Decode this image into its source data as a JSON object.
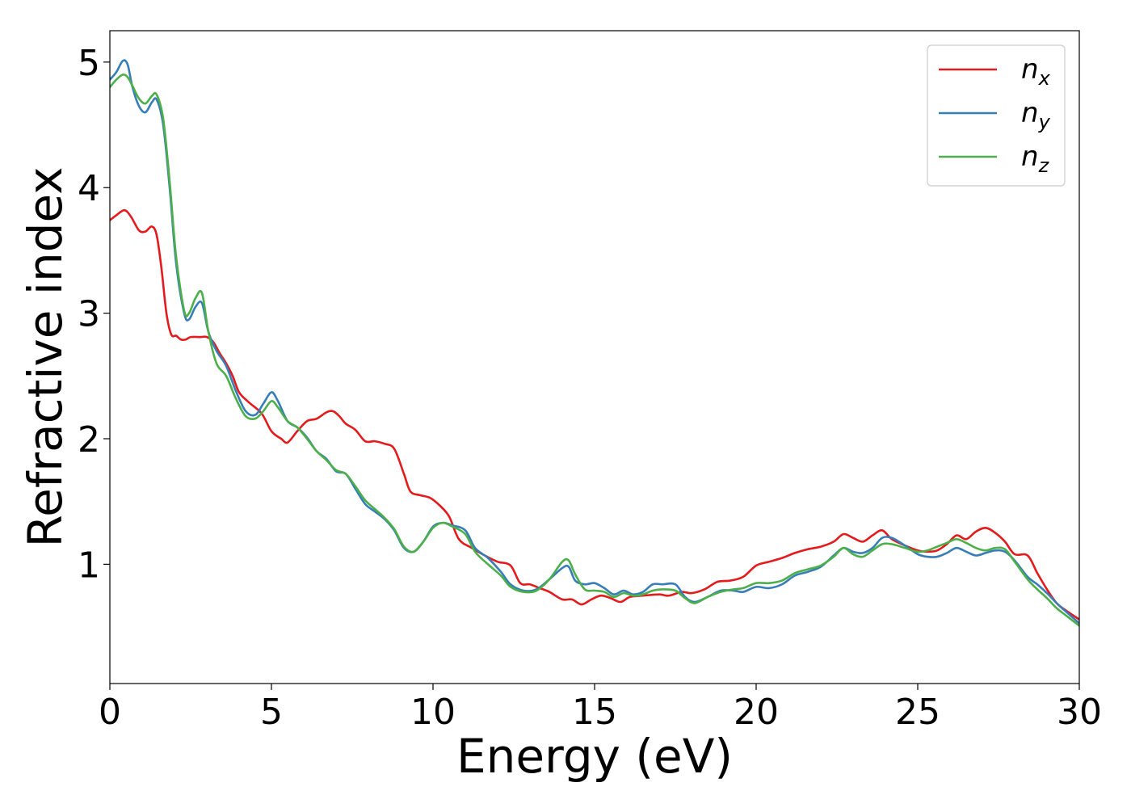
{
  "chart_data": {
    "type": "line",
    "title": "",
    "xlabel": "Energy (eV)",
    "ylabel": "Refractive index",
    "xlim": [
      0,
      30
    ],
    "ylim": [
      0.05,
      5.25
    ],
    "xticks": [
      0,
      5,
      10,
      15,
      20,
      25,
      30
    ],
    "yticks": [
      1,
      2,
      3,
      4,
      5
    ],
    "grid": false,
    "legend_position": "top-right",
    "series": [
      {
        "name": "n",
        "subscript": "x",
        "color": "#e41a1c",
        "points": [
          [
            0,
            3.74
          ],
          [
            0.2,
            3.78
          ],
          [
            0.45,
            3.82
          ],
          [
            0.65,
            3.77
          ],
          [
            0.9,
            3.66
          ],
          [
            1.1,
            3.65
          ],
          [
            1.3,
            3.69
          ],
          [
            1.45,
            3.62
          ],
          [
            1.6,
            3.35
          ],
          [
            1.75,
            3.0
          ],
          [
            1.9,
            2.83
          ],
          [
            2.05,
            2.82
          ],
          [
            2.2,
            2.79
          ],
          [
            2.35,
            2.79
          ],
          [
            2.5,
            2.81
          ],
          [
            2.8,
            2.81
          ],
          [
            3.0,
            2.81
          ],
          [
            3.2,
            2.77
          ],
          [
            3.4,
            2.68
          ],
          [
            3.6,
            2.6
          ],
          [
            3.8,
            2.5
          ],
          [
            4.0,
            2.37
          ],
          [
            4.3,
            2.29
          ],
          [
            4.7,
            2.2
          ],
          [
            5.0,
            2.06
          ],
          [
            5.3,
            2.0
          ],
          [
            5.5,
            1.97
          ],
          [
            5.8,
            2.06
          ],
          [
            6.1,
            2.14
          ],
          [
            6.4,
            2.16
          ],
          [
            6.7,
            2.21
          ],
          [
            6.9,
            2.22
          ],
          [
            7.1,
            2.18
          ],
          [
            7.3,
            2.12
          ],
          [
            7.6,
            2.07
          ],
          [
            7.9,
            1.98
          ],
          [
            8.2,
            1.98
          ],
          [
            8.5,
            1.96
          ],
          [
            8.8,
            1.92
          ],
          [
            9.1,
            1.72
          ],
          [
            9.3,
            1.58
          ],
          [
            9.6,
            1.55
          ],
          [
            9.9,
            1.53
          ],
          [
            10.2,
            1.47
          ],
          [
            10.5,
            1.38
          ],
          [
            10.8,
            1.2
          ],
          [
            11.2,
            1.13
          ],
          [
            11.6,
            1.07
          ],
          [
            12.0,
            1.02
          ],
          [
            12.4,
            0.99
          ],
          [
            12.7,
            0.85
          ],
          [
            13.0,
            0.84
          ],
          [
            13.3,
            0.81
          ],
          [
            13.6,
            0.78
          ],
          [
            14.0,
            0.72
          ],
          [
            14.3,
            0.72
          ],
          [
            14.6,
            0.68
          ],
          [
            14.9,
            0.72
          ],
          [
            15.2,
            0.75
          ],
          [
            15.5,
            0.73
          ],
          [
            15.8,
            0.7
          ],
          [
            16.1,
            0.74
          ],
          [
            16.5,
            0.75
          ],
          [
            17.0,
            0.76
          ],
          [
            17.3,
            0.75
          ],
          [
            17.7,
            0.78
          ],
          [
            18.0,
            0.77
          ],
          [
            18.4,
            0.8
          ],
          [
            18.8,
            0.86
          ],
          [
            19.2,
            0.87
          ],
          [
            19.6,
            0.9
          ],
          [
            20.0,
            0.99
          ],
          [
            20.4,
            1.02
          ],
          [
            20.8,
            1.05
          ],
          [
            21.2,
            1.09
          ],
          [
            21.6,
            1.12
          ],
          [
            22.0,
            1.14
          ],
          [
            22.4,
            1.18
          ],
          [
            22.7,
            1.24
          ],
          [
            23.0,
            1.21
          ],
          [
            23.3,
            1.18
          ],
          [
            23.6,
            1.23
          ],
          [
            23.9,
            1.27
          ],
          [
            24.2,
            1.2
          ],
          [
            24.6,
            1.15
          ],
          [
            25.0,
            1.11
          ],
          [
            25.3,
            1.1
          ],
          [
            25.6,
            1.11
          ],
          [
            25.9,
            1.16
          ],
          [
            26.2,
            1.23
          ],
          [
            26.5,
            1.2
          ],
          [
            26.8,
            1.26
          ],
          [
            27.1,
            1.29
          ],
          [
            27.4,
            1.25
          ],
          [
            27.7,
            1.18
          ],
          [
            28.0,
            1.08
          ],
          [
            28.4,
            1.07
          ],
          [
            28.7,
            0.93
          ],
          [
            29.0,
            0.8
          ],
          [
            29.3,
            0.69
          ],
          [
            29.6,
            0.63
          ],
          [
            30.0,
            0.56
          ]
        ]
      },
      {
        "name": "n",
        "subscript": "y",
        "color": "#377eb8",
        "points": [
          [
            0,
            4.86
          ],
          [
            0.2,
            4.92
          ],
          [
            0.4,
            5.01
          ],
          [
            0.55,
            4.98
          ],
          [
            0.7,
            4.8
          ],
          [
            0.9,
            4.65
          ],
          [
            1.1,
            4.6
          ],
          [
            1.3,
            4.68
          ],
          [
            1.45,
            4.7
          ],
          [
            1.65,
            4.5
          ],
          [
            1.85,
            4.0
          ],
          [
            2.05,
            3.4
          ],
          [
            2.3,
            3.0
          ],
          [
            2.45,
            2.95
          ],
          [
            2.65,
            3.05
          ],
          [
            2.85,
            3.08
          ],
          [
            3.05,
            2.85
          ],
          [
            3.3,
            2.7
          ],
          [
            3.6,
            2.58
          ],
          [
            3.9,
            2.38
          ],
          [
            4.2,
            2.22
          ],
          [
            4.5,
            2.19
          ],
          [
            4.75,
            2.28
          ],
          [
            5.0,
            2.37
          ],
          [
            5.2,
            2.3
          ],
          [
            5.5,
            2.14
          ],
          [
            5.8,
            2.09
          ],
          [
            6.1,
            2.01
          ],
          [
            6.4,
            1.9
          ],
          [
            6.7,
            1.84
          ],
          [
            7.0,
            1.74
          ],
          [
            7.3,
            1.72
          ],
          [
            7.6,
            1.6
          ],
          [
            7.9,
            1.48
          ],
          [
            8.2,
            1.42
          ],
          [
            8.5,
            1.36
          ],
          [
            8.8,
            1.27
          ],
          [
            9.1,
            1.13
          ],
          [
            9.4,
            1.1
          ],
          [
            9.7,
            1.18
          ],
          [
            10.0,
            1.3
          ],
          [
            10.3,
            1.33
          ],
          [
            10.6,
            1.31
          ],
          [
            11.0,
            1.27
          ],
          [
            11.3,
            1.13
          ],
          [
            11.7,
            1.05
          ],
          [
            12.1,
            0.94
          ],
          [
            12.4,
            0.84
          ],
          [
            12.8,
            0.79
          ],
          [
            13.2,
            0.8
          ],
          [
            13.6,
            0.88
          ],
          [
            14.0,
            0.97
          ],
          [
            14.2,
            0.98
          ],
          [
            14.4,
            0.87
          ],
          [
            14.7,
            0.84
          ],
          [
            15.0,
            0.85
          ],
          [
            15.3,
            0.81
          ],
          [
            15.6,
            0.76
          ],
          [
            15.9,
            0.79
          ],
          [
            16.2,
            0.76
          ],
          [
            16.5,
            0.78
          ],
          [
            16.8,
            0.84
          ],
          [
            17.1,
            0.84
          ],
          [
            17.5,
            0.84
          ],
          [
            17.8,
            0.74
          ],
          [
            18.1,
            0.7
          ],
          [
            18.5,
            0.74
          ],
          [
            18.9,
            0.79
          ],
          [
            19.3,
            0.79
          ],
          [
            19.6,
            0.78
          ],
          [
            20.0,
            0.82
          ],
          [
            20.4,
            0.81
          ],
          [
            20.8,
            0.84
          ],
          [
            21.2,
            0.91
          ],
          [
            21.6,
            0.94
          ],
          [
            22.0,
            0.98
          ],
          [
            22.4,
            1.07
          ],
          [
            22.7,
            1.13
          ],
          [
            23.0,
            1.1
          ],
          [
            23.3,
            1.09
          ],
          [
            23.6,
            1.13
          ],
          [
            23.9,
            1.21
          ],
          [
            24.2,
            1.21
          ],
          [
            24.6,
            1.15
          ],
          [
            25.0,
            1.08
          ],
          [
            25.3,
            1.06
          ],
          [
            25.6,
            1.06
          ],
          [
            25.9,
            1.09
          ],
          [
            26.2,
            1.13
          ],
          [
            26.5,
            1.1
          ],
          [
            26.8,
            1.07
          ],
          [
            27.1,
            1.09
          ],
          [
            27.4,
            1.11
          ],
          [
            27.7,
            1.1
          ],
          [
            28.0,
            1.03
          ],
          [
            28.4,
            0.9
          ],
          [
            28.7,
            0.84
          ],
          [
            29.0,
            0.77
          ],
          [
            29.3,
            0.69
          ],
          [
            29.6,
            0.62
          ],
          [
            30.0,
            0.53
          ]
        ]
      },
      {
        "name": "n",
        "subscript": "z",
        "color": "#4daf4a",
        "points": [
          [
            0,
            4.8
          ],
          [
            0.2,
            4.86
          ],
          [
            0.4,
            4.9
          ],
          [
            0.55,
            4.88
          ],
          [
            0.7,
            4.81
          ],
          [
            0.9,
            4.71
          ],
          [
            1.1,
            4.67
          ],
          [
            1.3,
            4.73
          ],
          [
            1.45,
            4.74
          ],
          [
            1.65,
            4.55
          ],
          [
            1.85,
            4.05
          ],
          [
            2.05,
            3.45
          ],
          [
            2.3,
            3.02
          ],
          [
            2.45,
            3.0
          ],
          [
            2.65,
            3.12
          ],
          [
            2.85,
            3.16
          ],
          [
            3.05,
            2.85
          ],
          [
            3.3,
            2.6
          ],
          [
            3.6,
            2.5
          ],
          [
            3.9,
            2.32
          ],
          [
            4.2,
            2.18
          ],
          [
            4.5,
            2.16
          ],
          [
            4.75,
            2.22
          ],
          [
            5.0,
            2.3
          ],
          [
            5.2,
            2.25
          ],
          [
            5.5,
            2.14
          ],
          [
            5.8,
            2.09
          ],
          [
            6.1,
            2.0
          ],
          [
            6.4,
            1.9
          ],
          [
            6.7,
            1.83
          ],
          [
            7.0,
            1.75
          ],
          [
            7.3,
            1.72
          ],
          [
            7.6,
            1.62
          ],
          [
            7.9,
            1.51
          ],
          [
            8.2,
            1.44
          ],
          [
            8.5,
            1.37
          ],
          [
            8.8,
            1.28
          ],
          [
            9.1,
            1.14
          ],
          [
            9.4,
            1.1
          ],
          [
            9.7,
            1.18
          ],
          [
            10.0,
            1.29
          ],
          [
            10.3,
            1.33
          ],
          [
            10.6,
            1.3
          ],
          [
            11.0,
            1.24
          ],
          [
            11.3,
            1.1
          ],
          [
            11.7,
            1.0
          ],
          [
            12.1,
            0.91
          ],
          [
            12.4,
            0.82
          ],
          [
            12.8,
            0.78
          ],
          [
            13.2,
            0.79
          ],
          [
            13.6,
            0.88
          ],
          [
            14.0,
            1.02
          ],
          [
            14.2,
            1.03
          ],
          [
            14.4,
            0.92
          ],
          [
            14.7,
            0.8
          ],
          [
            15.0,
            0.79
          ],
          [
            15.3,
            0.78
          ],
          [
            15.6,
            0.74
          ],
          [
            15.9,
            0.77
          ],
          [
            16.2,
            0.75
          ],
          [
            16.5,
            0.76
          ],
          [
            16.8,
            0.79
          ],
          [
            17.1,
            0.8
          ],
          [
            17.5,
            0.79
          ],
          [
            17.8,
            0.73
          ],
          [
            18.1,
            0.69
          ],
          [
            18.5,
            0.74
          ],
          [
            18.9,
            0.78
          ],
          [
            19.3,
            0.8
          ],
          [
            19.6,
            0.81
          ],
          [
            20.0,
            0.85
          ],
          [
            20.4,
            0.85
          ],
          [
            20.8,
            0.87
          ],
          [
            21.2,
            0.93
          ],
          [
            21.6,
            0.96
          ],
          [
            22.0,
            0.99
          ],
          [
            22.4,
            1.06
          ],
          [
            22.7,
            1.13
          ],
          [
            23.0,
            1.08
          ],
          [
            23.3,
            1.06
          ],
          [
            23.6,
            1.11
          ],
          [
            23.9,
            1.16
          ],
          [
            24.2,
            1.16
          ],
          [
            24.6,
            1.13
          ],
          [
            25.0,
            1.1
          ],
          [
            25.3,
            1.11
          ],
          [
            25.6,
            1.14
          ],
          [
            25.9,
            1.17
          ],
          [
            26.2,
            1.2
          ],
          [
            26.5,
            1.17
          ],
          [
            26.8,
            1.13
          ],
          [
            27.1,
            1.11
          ],
          [
            27.4,
            1.13
          ],
          [
            27.7,
            1.12
          ],
          [
            28.0,
            1.02
          ],
          [
            28.4,
            0.88
          ],
          [
            28.7,
            0.8
          ],
          [
            29.0,
            0.73
          ],
          [
            29.3,
            0.65
          ],
          [
            29.6,
            0.59
          ],
          [
            30.0,
            0.51
          ]
        ]
      }
    ]
  }
}
